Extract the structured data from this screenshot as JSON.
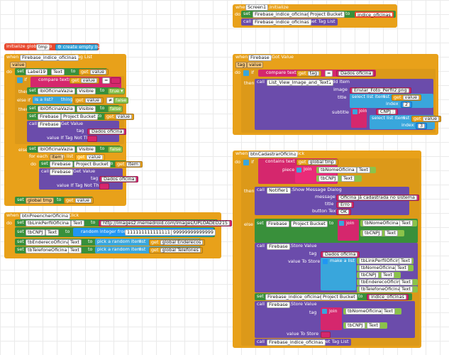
{
  "kw": {
    "when": "when",
    "do": "do",
    "if": "if",
    "then": "then",
    "else": "else",
    "else_if": "else if",
    "set": "set",
    "call": "call",
    "to": "to",
    "get": "get",
    "initialize_global": "initialize global",
    "for_each": "for each",
    "in_list": "in list",
    "item": "item",
    "value": "value",
    "tag": "tag",
    "join": "join",
    "contains_text": "contains text",
    "piece": "piece",
    "compare_texts": "compare texts",
    "is_a_list": "is a list?",
    "thing": "thing",
    "create_empty_list": "create empty list",
    "random_integer_from": "random integer from",
    "pick_random_item": "pick a random item",
    "list": "list",
    "select_list_item": "select list item",
    "index": "index",
    "make_a_list": "make a list",
    "true": "true",
    "false": "false",
    "eq": "=",
    "neq": "≠",
    "value_if_tag_not_there": "value If Tag Not There",
    "value_to_store": "value To Store",
    "image": "image",
    "title": "title",
    "subtitle": "subtitle",
    "message": "message",
    "button_text": "button Text",
    "text_prop": "Text",
    "visible_prop": "Visible",
    "project_bucket": "Project Bucket"
  },
  "comp": {
    "screen1": "Screen1",
    "firebase": "Firebase",
    "firebase_indice": "Firebase_indice_oficinas",
    "label19": "Label19",
    "lbl_vazia": "lblOficinaVazia",
    "list_view": "List_View_Image_and_Text1",
    "btn_cadastrar": "btnCadastrarOficina",
    "btn_preencher": "btnPreencherOficina",
    "notifier": "Notifier1",
    "tb_nome": "tbNomeOficina",
    "tb_cnpj": "tbCNPJ",
    "tb_link": "tbLinkPerfilOficina",
    "tb_endereco": "tbEnderecoOficina",
    "tb_telefone": "tbTelefoneOficina"
  },
  "ev": {
    "initialize": ".Initialize",
    "got_value": ".Got Value",
    "tag_list": ".Tag List",
    "click": ".Click"
  },
  "meth": {
    "get_tag_list": ".Get Tag List",
    "get_value": ".Get Value",
    "add_item": ".Add Item",
    "show_message_dialog": ".Show Message Dialog",
    "store_value": ".Store Value"
  },
  "var": {
    "tmp": "tmp",
    "global_tmp": "global tmp",
    "global_enderecos": "global Enderecos",
    "global_telefones": "global Telefones"
  },
  "str": {
    "indice_oficinas": "indice_oficinas",
    "dados_oficina": "Dados oficina",
    "empty": " ",
    "enviar_foto": "Enviar_Foto_Perfil2.png",
    "cnpj": "CNPJ : ",
    "oficina_ja": "Oficina já cadastrada no sistema",
    "erro": "Erro",
    "ok": "OK",
    "url": "http://images2.memedroid.com/images/UPLOADED215",
    "rand_from": "111111111111111",
    "rand_to": "99999999999999"
  },
  "num": {
    "one": "1",
    "two": "2",
    "three": "3"
  }
}
